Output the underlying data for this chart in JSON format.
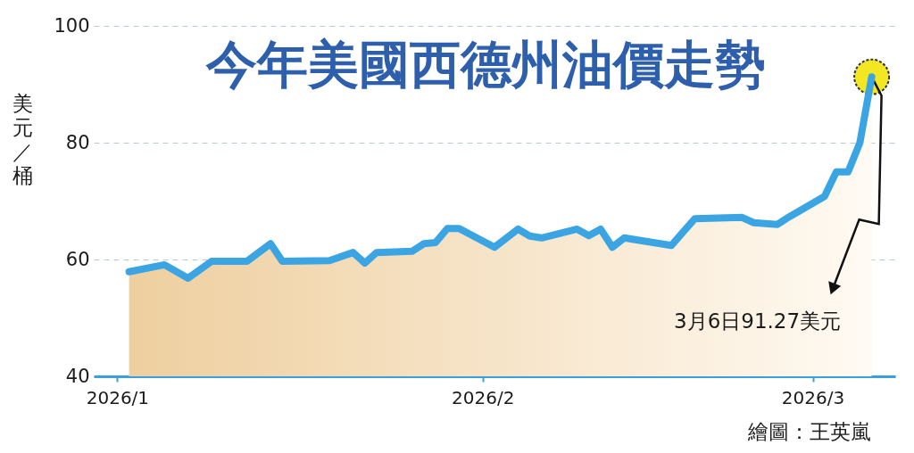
{
  "chart_data": {
    "type": "area",
    "title": "今年美國西德州油價走勢",
    "ylabel": "美元／桶",
    "x": [
      "2026-01-02",
      "2026-01-05",
      "2026-01-07",
      "2026-01-09",
      "2026-01-12",
      "2026-01-14",
      "2026-01-15",
      "2026-01-19",
      "2026-01-21",
      "2026-01-22",
      "2026-01-23",
      "2026-01-26",
      "2026-01-27",
      "2026-01-28",
      "2026-01-29",
      "2026-01-30",
      "2026-02-02",
      "2026-02-04",
      "2026-02-05",
      "2026-02-06",
      "2026-02-09",
      "2026-02-10",
      "2026-02-11",
      "2026-02-12",
      "2026-02-13",
      "2026-02-17",
      "2026-02-18",
      "2026-02-19",
      "2026-02-23",
      "2026-02-24",
      "2026-02-26",
      "2026-02-27",
      "2026-03-02",
      "2026-03-03",
      "2026-03-04",
      "2026-03-05",
      "2026-03-06"
    ],
    "series": [
      {
        "color": "#3ba5e3",
        "values": [
          57.9,
          59.1,
          56.8,
          59.7,
          59.7,
          62.7,
          59.7,
          59.8,
          61.2,
          59.4,
          61.2,
          61.4,
          62.7,
          62.9,
          65.3,
          65.3,
          62.1,
          65.2,
          64.0,
          63.7,
          65.2,
          64.1,
          65.2,
          62.1,
          63.7,
          62.4,
          64.7,
          67.0,
          67.2,
          66.3,
          66.0,
          67.3,
          70.8,
          75.0,
          75.0,
          80.0,
          91.27
        ]
      }
    ],
    "xlim": [
      "2025-12-30",
      "2026-03-08"
    ],
    "ylim": [
      40,
      100
    ],
    "xticks": [
      {
        "value": "2026-01-01",
        "label": "2026/1"
      },
      {
        "value": "2026-02-01",
        "label": "2026/2"
      },
      {
        "value": "2026-03-01",
        "label": "2026/3"
      }
    ],
    "yticks": [
      40,
      60,
      80,
      100
    ],
    "grid": "y",
    "annotations": [
      {
        "text": "3月6日91.27美元",
        "x": "2026-03-06",
        "y": 91.27
      },
      "繪圖：王英嵐"
    ]
  }
}
